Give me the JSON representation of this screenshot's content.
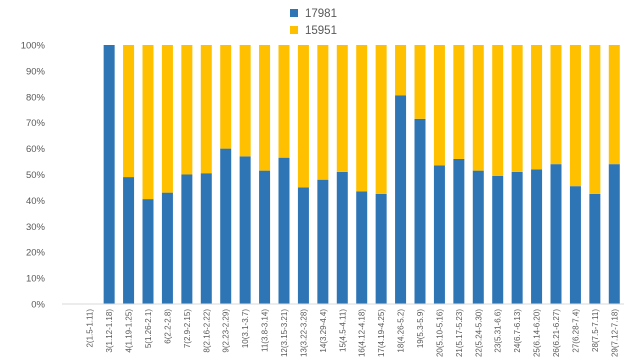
{
  "chart_data": {
    "type": "bar",
    "stacked": "percent",
    "legend_position": "top",
    "grid": false,
    "ylim": [
      0,
      100
    ],
    "yticks": [
      "0%",
      "10%",
      "20%",
      "30%",
      "40%",
      "50%",
      "60%",
      "70%",
      "80%",
      "90%",
      "100%"
    ],
    "categories": [
      "2(1.5-1.11)",
      "3(1.12-1.18)",
      "4(1.19-1.25)",
      "5(1.26-2.1)",
      "6(2.2-2.8)",
      "7(2.9-2.15)",
      "8(2.16-2.22)",
      "9(2.23-2.29)",
      "10(3.1-3.7)",
      "11(3.8-3.14)",
      "12(3.15-3.21)",
      "13(3.22-3.28)",
      "14(3.29-4.4)",
      "15(4.5-4.11)",
      "16(4.12-4.18)",
      "17(4.19-4.25)",
      "18(4.26-5.2)",
      "19(5.3-5.9)",
      "20(5.10-5.16)",
      "21(5.17-5.23)",
      "22(5.24-5.30)",
      "23(5.31-6.6)",
      "24(6.7-6.13)",
      "25(6.14-6.20)",
      "26(6.21-6.27)",
      "27(6.28-7.4)",
      "28(7.5-7.11)",
      "29(7.12-7.18)"
    ],
    "series": [
      {
        "name": "17981",
        "color": "#2E75B6",
        "values": [
          0,
          100,
          49,
          40.5,
          43,
          50,
          50.5,
          60,
          57,
          51.5,
          56.5,
          45,
          48,
          51,
          43.5,
          42.5,
          80.5,
          71.5,
          53.5,
          56,
          51.5,
          49.5,
          51,
          52,
          54,
          45.5,
          42.5,
          54
        ]
      },
      {
        "name": "15951",
        "color": "#FFC000",
        "values": [
          0,
          0,
          51,
          59.5,
          57,
          50,
          49.5,
          40,
          43,
          48.5,
          43.5,
          55,
          52,
          49,
          56.5,
          57.5,
          19.5,
          28.5,
          46.5,
          44,
          48.5,
          50.5,
          49,
          48,
          46,
          54.5,
          57.5,
          46
        ]
      }
    ]
  }
}
